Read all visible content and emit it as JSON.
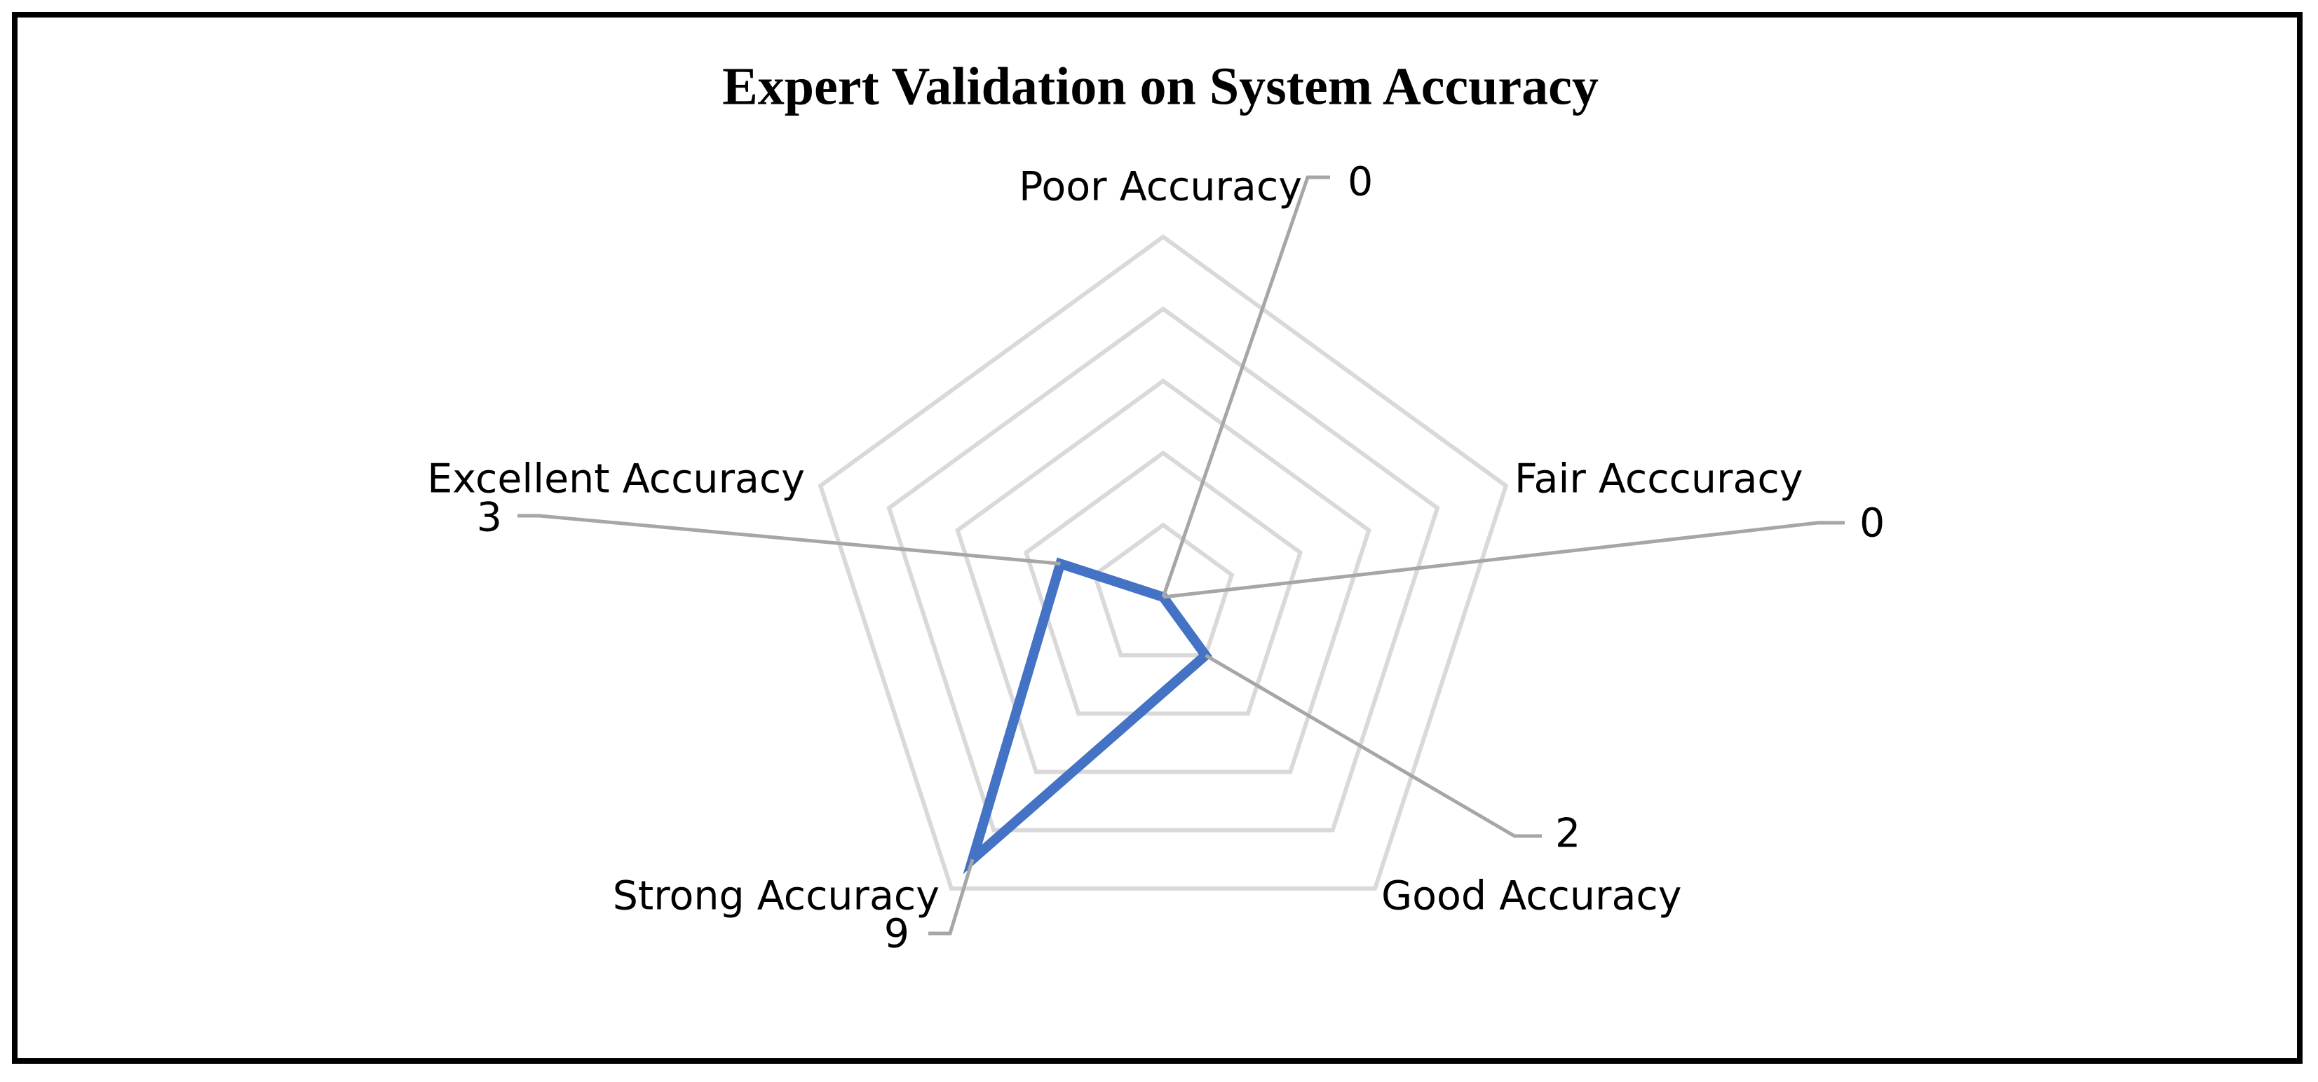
{
  "chart_data": {
    "type": "radar",
    "title": "Expert Validation on System Accuracy",
    "categories": [
      "Poor Accuracy",
      "Fair Acccuracy",
      "Good Accuracy",
      "Strong Accuracy",
      "Excellent Accuracy"
    ],
    "values": [
      0,
      0,
      2,
      9,
      3
    ],
    "color": "#4472c4",
    "rlim": [
      0,
      10
    ],
    "rticks": [
      2,
      4,
      6,
      8,
      10
    ],
    "grid": true
  }
}
